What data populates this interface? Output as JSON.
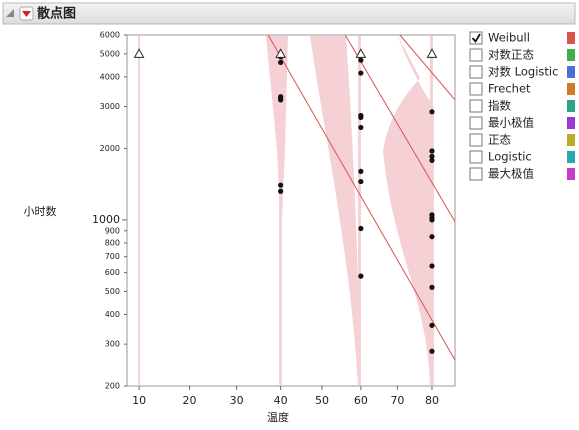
{
  "chart_data": {
    "type": "scatter",
    "title": "散点图",
    "x_label": "温度",
    "y_label": "小时数",
    "xscale": "arrhenius",
    "yscale": "log",
    "xlim": [
      7.7,
      87
    ],
    "ylim": [
      200,
      6000
    ],
    "xticks": [
      10,
      20,
      30,
      40,
      50,
      60,
      70,
      80
    ],
    "yticks": [
      200,
      300,
      400,
      500,
      600,
      700,
      800,
      900,
      1000,
      2000,
      3000,
      4000,
      5000,
      6000
    ],
    "failures": {
      "x": [
        40,
        40,
        40,
        40,
        40,
        40,
        40,
        40,
        40,
        60,
        60,
        60,
        60,
        60,
        60,
        60,
        60,
        60,
        80,
        80,
        80,
        80,
        80,
        80,
        80,
        80,
        80,
        80,
        80,
        80
      ],
      "y": [
        4950,
        4850,
        4600,
        3300,
        3250,
        3200,
        1400,
        1320,
        4900,
        4700,
        4150,
        2750,
        2700,
        2450,
        1600,
        1450,
        920,
        580,
        2850,
        1950,
        1850,
        1780,
        1050,
        1020,
        1000,
        850,
        640,
        520,
        360,
        280
      ]
    },
    "censored": {
      "x": [
        10,
        40,
        60,
        80
      ],
      "y": [
        5000,
        5000,
        5000,
        5000
      ]
    },
    "fit_color": "#d9534f",
    "fit_lines": [
      {
        "x": [
          37.1,
          87
        ],
        "y": [
          6000,
          257
        ]
      },
      {
        "x": [
          55.9,
          87
        ],
        "y": [
          6000,
          982
        ]
      },
      {
        "x": [
          70.7,
          87
        ],
        "y": [
          6000,
          3200
        ]
      }
    ],
    "legend": [
      {
        "name": "Weibull",
        "color": "#d9534f",
        "checked": true
      },
      {
        "name": "对数正态",
        "color": "#3fae49",
        "checked": false
      },
      {
        "name": "对数 Logistic",
        "color": "#4a6fd8",
        "checked": false
      },
      {
        "name": "Frechet",
        "color": "#d07a2c",
        "checked": false
      },
      {
        "name": "指数",
        "color": "#2aa58a",
        "checked": false
      },
      {
        "name": "最小极值",
        "color": "#9a3ad0",
        "checked": false
      },
      {
        "name": "正态",
        "color": "#b9ac2a",
        "checked": false
      },
      {
        "name": "Logistic",
        "color": "#2aa6b0",
        "checked": false
      },
      {
        "name": "最大极值",
        "color": "#c83ac8",
        "checked": false
      }
    ]
  }
}
